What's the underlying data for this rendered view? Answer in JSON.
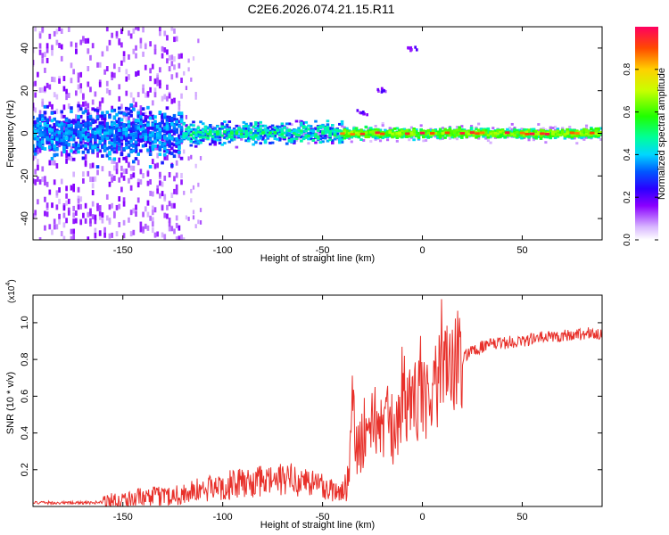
{
  "figure_title": "C2E6.2026.074.21.15.R11",
  "chart_data": [
    {
      "type": "heatmap",
      "xlabel": "Height of straight line (km)",
      "ylabel": "Frequency (Hz)",
      "xlim": [
        -195,
        90
      ],
      "ylim": [
        -50,
        50
      ],
      "xticks": [
        -150,
        -100,
        -50,
        0,
        50
      ],
      "yticks": [
        -40,
        -20,
        0,
        20,
        40
      ],
      "colorbar": {
        "label": "Normalized spectral amplitude",
        "range": [
          0,
          1
        ],
        "ticks": [
          "0.0",
          "0.2",
          "0.4",
          "0.6",
          "0.8"
        ],
        "tick_values": [
          0.0,
          0.2,
          0.4,
          0.6,
          0.8
        ]
      },
      "description_points": {
        "core_band_frequency": 0,
        "drift_points": [
          [
            -60,
            5
          ],
          [
            -30,
            10
          ],
          [
            -20,
            20
          ],
          [
            -5,
            40
          ]
        ]
      }
    },
    {
      "type": "line",
      "xlabel": "Height of straight line (km)",
      "ylabel": "SNR (10 * v/v)",
      "multiplier": "(x10",
      "multiplier_exp": "4",
      "multiplier_close": ")",
      "xlim": [
        -195,
        90
      ],
      "ylim": [
        0,
        1.15
      ],
      "xticks": [
        -150,
        -100,
        -50,
        0,
        50
      ],
      "yticks": [
        0.2,
        0.4,
        0.6,
        0.8,
        1.0
      ],
      "ytick_labels": [
        "0.2",
        "0.4",
        "0.6",
        "0.8",
        "1.0"
      ],
      "series": [
        {
          "name": "SNR",
          "color": "#e8302a",
          "x": [
            -195,
            -180,
            -165,
            -155,
            -145,
            -135,
            -125,
            -115,
            -105,
            -95,
            -85,
            -75,
            -65,
            -55,
            -45,
            -38,
            -35,
            -33,
            -30,
            -25,
            -20,
            -15,
            -10,
            -5,
            0,
            5,
            8,
            10,
            12,
            15,
            20,
            25,
            30,
            40,
            50,
            60,
            70,
            80,
            90
          ],
          "values": [
            0.02,
            0.02,
            0.02,
            0.03,
            0.04,
            0.05,
            0.06,
            0.08,
            0.1,
            0.12,
            0.13,
            0.14,
            0.15,
            0.13,
            0.09,
            0.08,
            0.55,
            0.32,
            0.4,
            0.45,
            0.48,
            0.42,
            0.5,
            0.55,
            0.6,
            0.62,
            0.7,
            0.9,
            0.72,
            0.75,
            0.8,
            0.85,
            0.87,
            0.89,
            0.9,
            0.92,
            0.93,
            0.94,
            0.94
          ]
        }
      ]
    }
  ],
  "colors": {
    "line": "#e8302a",
    "axis": "#000000"
  }
}
